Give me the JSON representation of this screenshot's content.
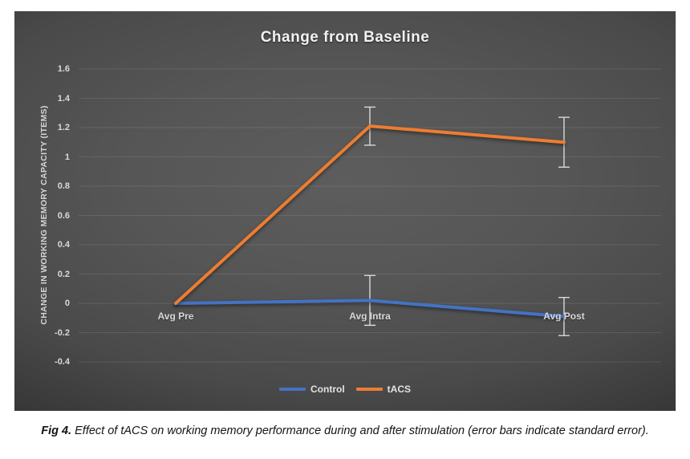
{
  "figure": {
    "caption_prefix": "Fig 4.",
    "caption_text": " Effect of tACS on working memory performance during and after stimulation (error bars indicate standard error)."
  },
  "chart_data": {
    "type": "line",
    "title": "Change from Baseline",
    "categories": [
      "Avg Pre",
      "Avg Intra",
      "Avg Post"
    ],
    "series": [
      {
        "name": "Control",
        "color": "#4472C4",
        "values": [
          0,
          0.02,
          -0.09
        ],
        "errors": [
          null,
          0.17,
          0.13
        ]
      },
      {
        "name": "tACS",
        "color": "#ED7D31",
        "values": [
          0,
          1.21,
          1.1
        ],
        "errors": [
          null,
          0.13,
          0.17
        ]
      }
    ],
    "xlabel": "",
    "ylabel": "CHANGE IN WORKING MEMORY CAPACITY (ITEMS)",
    "ylim": [
      -0.4,
      1.6
    ],
    "ytick_step": 0.2,
    "grid": true,
    "legend_position": "bottom",
    "error_bar_color": "#D9D9D9",
    "gridline_color": "rgba(255,255,255,0.10)",
    "plot_background_center": "#5D5D5D",
    "plot_background_edge": "#161616"
  }
}
